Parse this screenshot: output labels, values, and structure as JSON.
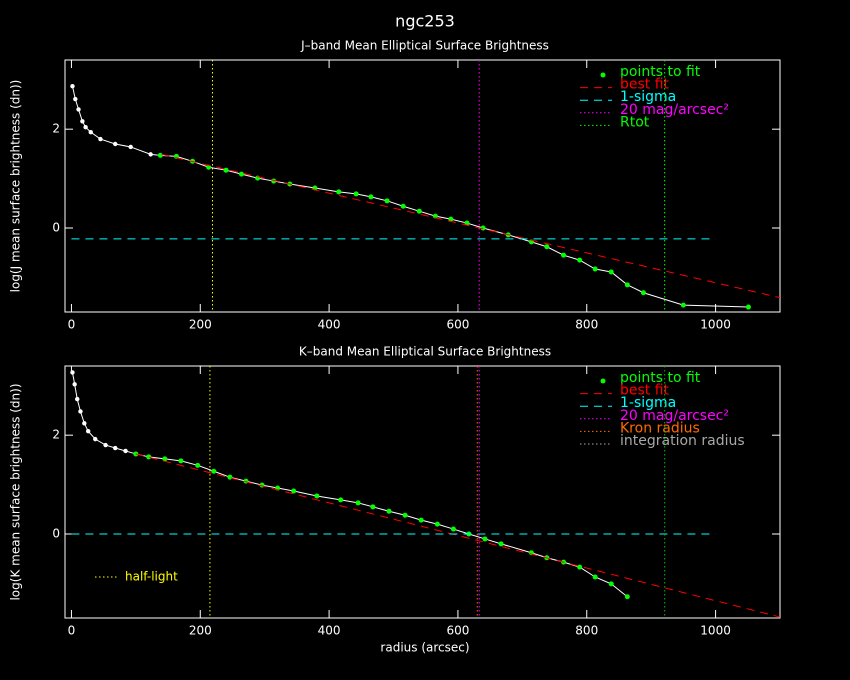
{
  "title": "ngc253",
  "chart_data": [
    {
      "type": "line",
      "title": "J–band Mean Elliptical Surface Brightness",
      "ylabel": "log(J mean surface brightness (dn))",
      "xlim": [
        -10,
        1100
      ],
      "ylim": [
        -1.7,
        3.4
      ],
      "xticks": [
        0,
        200,
        400,
        600,
        800,
        1000
      ],
      "yticks": [
        0,
        2
      ],
      "profile": {
        "color": "#ffffff",
        "x": [
          1.6,
          6,
          11,
          17,
          22,
          30,
          45,
          68,
          92,
          123,
          138,
          163,
          188,
          213,
          240,
          264,
          289,
          314,
          339,
          378,
          415,
          442,
          465,
          490,
          515,
          540,
          565,
          589,
          614,
          639,
          678,
          714,
          738,
          764,
          789,
          813,
          838,
          863,
          888,
          950,
          1051
        ],
        "values": [
          2.87,
          2.61,
          2.4,
          2.16,
          2.04,
          1.94,
          1.8,
          1.7,
          1.64,
          1.49,
          1.47,
          1.45,
          1.35,
          1.23,
          1.17,
          1.09,
          1.01,
          0.95,
          0.89,
          0.81,
          0.73,
          0.69,
          0.63,
          0.55,
          0.44,
          0.34,
          0.24,
          0.18,
          0.1,
          0.0,
          -0.14,
          -0.28,
          -0.38,
          -0.55,
          -0.65,
          -0.83,
          -0.89,
          -1.15,
          -1.31,
          -1.56,
          -1.6
        ]
      },
      "half_light": {
        "color": "#ffff00",
        "x": 219
      },
      "series": [
        {
          "name": "points to fit",
          "kind": "points",
          "color": "#00ff00",
          "x": [
            138,
            163,
            188,
            213,
            240,
            264,
            289,
            314,
            339,
            378,
            415,
            442,
            465,
            490,
            515,
            540,
            565,
            589,
            614,
            639,
            678,
            714,
            738,
            764,
            789,
            813,
            838,
            863,
            888,
            950,
            1051
          ],
          "values": [
            1.47,
            1.45,
            1.35,
            1.23,
            1.17,
            1.09,
            1.01,
            0.95,
            0.89,
            0.81,
            0.73,
            0.69,
            0.63,
            0.55,
            0.44,
            0.34,
            0.24,
            0.18,
            0.1,
            0.0,
            -0.14,
            -0.28,
            -0.38,
            -0.55,
            -0.65,
            -0.83,
            -0.89,
            -1.15,
            -1.31,
            -1.56,
            -1.6
          ]
        },
        {
          "name": "best fit",
          "kind": "dashed",
          "color": "#ff0000",
          "x": [
            140,
            1100
          ],
          "values": [
            1.49,
            -1.41
          ]
        },
        {
          "name": "1-sigma",
          "kind": "dashed",
          "color": "#00ffff",
          "x": [
            0,
            1000
          ],
          "values": [
            -0.22,
            -0.22
          ]
        },
        {
          "name": "20 mag/arcsec²",
          "kind": "vline",
          "color": "#ff00ff",
          "x": 633
        },
        {
          "name": "Rtot",
          "kind": "vline",
          "color": "#00ff00",
          "x": 921
        }
      ]
    },
    {
      "type": "line",
      "title": "K–band Mean Elliptical Surface Brightness",
      "ylabel": "log(K mean surface brightness (dn))",
      "xlabel": "radius (arcsec)",
      "xlim": [
        -10,
        1100
      ],
      "ylim": [
        -1.7,
        3.4
      ],
      "xticks": [
        0,
        200,
        400,
        600,
        800,
        1000
      ],
      "yticks": [
        0,
        2
      ],
      "profile": {
        "color": "#ffffff",
        "x": [
          1.6,
          5,
          9,
          14,
          20,
          26,
          37,
          53,
          68,
          84,
          100,
          120,
          145,
          170,
          196,
          221,
          246,
          271,
          296,
          320,
          345,
          381,
          418,
          445,
          468,
          493,
          518,
          543,
          568,
          593,
          617,
          642,
          667,
          714,
          738,
          764,
          789,
          813,
          838,
          863
        ],
        "values": [
          3.27,
          3.03,
          2.73,
          2.48,
          2.24,
          2.08,
          1.92,
          1.8,
          1.74,
          1.68,
          1.62,
          1.56,
          1.52,
          1.48,
          1.39,
          1.27,
          1.15,
          1.07,
          0.99,
          0.93,
          0.87,
          0.77,
          0.69,
          0.63,
          0.55,
          0.46,
          0.38,
          0.28,
          0.2,
          0.1,
          0.0,
          -0.1,
          -0.2,
          -0.38,
          -0.48,
          -0.57,
          -0.67,
          -0.87,
          -1.01,
          -1.27
        ]
      },
      "half_light": {
        "color": "#ffff00",
        "x": 215,
        "annotation": "half-light"
      },
      "series": [
        {
          "name": "points to fit",
          "kind": "points",
          "color": "#00ff00",
          "x": [
            100,
            120,
            145,
            170,
            196,
            221,
            246,
            271,
            296,
            320,
            345,
            381,
            418,
            445,
            468,
            493,
            518,
            543,
            568,
            593,
            617,
            642,
            667,
            714,
            738,
            764,
            789,
            813,
            838,
            863
          ],
          "values": [
            1.62,
            1.56,
            1.52,
            1.48,
            1.39,
            1.27,
            1.15,
            1.07,
            0.99,
            0.93,
            0.87,
            0.77,
            0.69,
            0.63,
            0.55,
            0.46,
            0.38,
            0.28,
            0.2,
            0.1,
            0.0,
            -0.1,
            -0.2,
            -0.38,
            -0.48,
            -0.57,
            -0.67,
            -0.87,
            -1.01,
            -1.27
          ]
        },
        {
          "name": "best fit",
          "kind": "dashed",
          "color": "#ff0000",
          "x": [
            100,
            1100
          ],
          "values": [
            1.62,
            -1.68
          ]
        },
        {
          "name": "1-sigma",
          "kind": "dashed",
          "color": "#00ffff",
          "x": [
            0,
            1000
          ],
          "values": [
            0,
            0
          ]
        },
        {
          "name": "20 mag/arcsec²",
          "kind": "vline",
          "color": "#ff00ff",
          "x": 633
        },
        {
          "name": "Kron radius",
          "kind": "vline",
          "color": "#ff6a00",
          "x": 630
        },
        {
          "name": "integration radius",
          "kind": "vline",
          "color": "#00c000",
          "label_color": "#a8a8a8",
          "x": 921
        }
      ]
    }
  ]
}
